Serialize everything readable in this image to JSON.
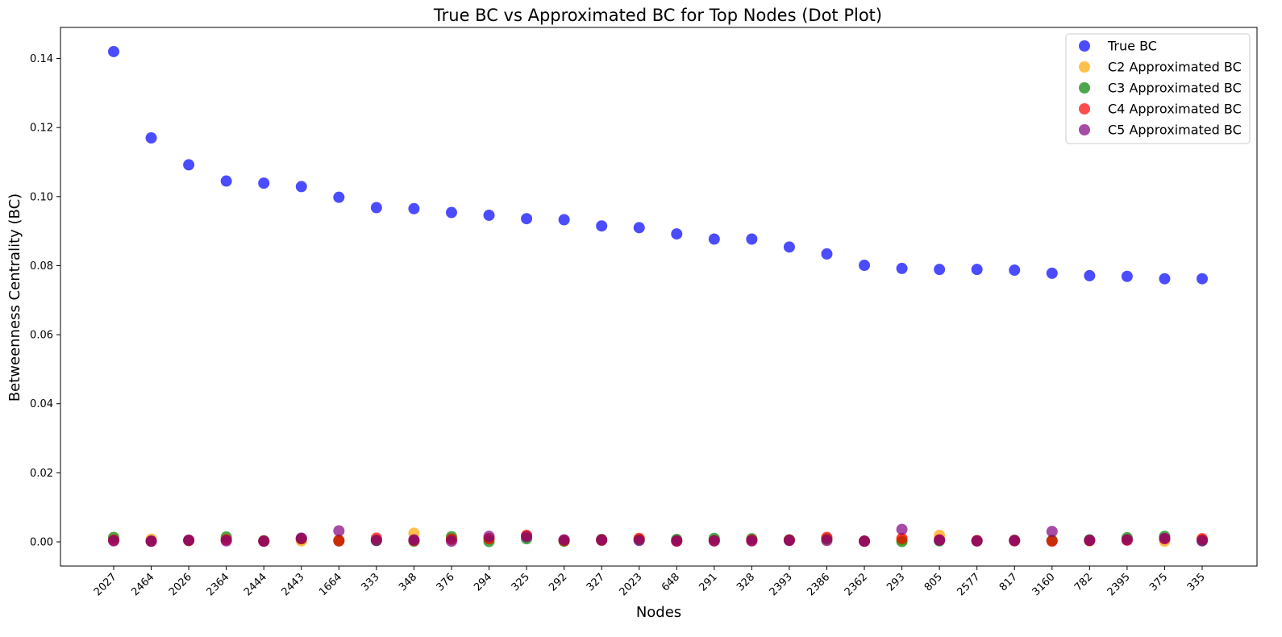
{
  "chart_data": {
    "type": "scatter",
    "title": "True BC vs Approximated BC for Top Nodes (Dot Plot)",
    "xlabel": "Nodes",
    "ylabel": "Betweenness Centrality (BC)",
    "ylim": [
      -0.007,
      0.149
    ],
    "yticks": [
      0.0,
      0.02,
      0.04,
      0.06,
      0.08,
      0.1,
      0.12,
      0.14
    ],
    "ytick_labels": [
      "0.00",
      "0.02",
      "0.04",
      "0.06",
      "0.08",
      "0.10",
      "0.12",
      "0.14"
    ],
    "categories": [
      "2027",
      "2464",
      "2026",
      "2364",
      "2444",
      "2443",
      "1664",
      "333",
      "348",
      "376",
      "294",
      "325",
      "292",
      "327",
      "2023",
      "648",
      "291",
      "328",
      "2393",
      "2386",
      "2362",
      "293",
      "805",
      "2577",
      "817",
      "3160",
      "782",
      "2395",
      "375",
      "335"
    ],
    "legend_position": "top-right",
    "grid": false,
    "series": [
      {
        "name": "True BC",
        "color": "#0000ff",
        "values": [
          0.142,
          0.117,
          0.1092,
          0.1045,
          0.1039,
          0.1029,
          0.0998,
          0.0968,
          0.0965,
          0.0954,
          0.0946,
          0.0936,
          0.0933,
          0.0915,
          0.091,
          0.0892,
          0.0877,
          0.0877,
          0.0854,
          0.0834,
          0.0801,
          0.0792,
          0.0789,
          0.0789,
          0.0787,
          0.0778,
          0.0771,
          0.0769,
          0.0762,
          0.0762
        ]
      },
      {
        "name": "C2 Approximated BC",
        "color": "#ffa500",
        "values": [
          0.0005,
          0.0008,
          0.0004,
          0.0006,
          0.0003,
          0.0003,
          0.0006,
          0.0005,
          0.0025,
          0.0006,
          0.0009,
          0.0017,
          0.0003,
          0.0004,
          0.0008,
          0.0003,
          0.0004,
          0.0003,
          0.0005,
          0.0006,
          0.0002,
          0.0006,
          0.0019,
          0.0004,
          0.0005,
          0.0004,
          0.0003,
          0.0006,
          0.0002,
          0.0007
        ]
      },
      {
        "name": "C3 Approximated BC",
        "color": "#008000",
        "values": [
          0.0013,
          0.0002,
          0.0004,
          0.0014,
          0.0003,
          0.0009,
          0.0003,
          0.0004,
          0.0002,
          0.0015,
          0.0001,
          0.0009,
          0.0002,
          0.0007,
          0.0006,
          0.0007,
          0.001,
          0.0009,
          0.0006,
          0.0009,
          0.0002,
          0.0001,
          0.0003,
          0.0003,
          0.0004,
          0.0004,
          0.0006,
          0.0012,
          0.0016,
          0.0004
        ]
      },
      {
        "name": "C4 Approximated BC",
        "color": "#ff0000",
        "values": [
          0.0005,
          0.0002,
          0.0004,
          0.0006,
          0.0002,
          0.0009,
          0.0003,
          0.0011,
          0.0004,
          0.0008,
          0.0009,
          0.0019,
          0.0004,
          0.0006,
          0.001,
          0.0002,
          0.0003,
          0.0005,
          0.0005,
          0.0013,
          0.0002,
          0.001,
          0.0006,
          0.0003,
          0.0003,
          0.0002,
          0.0004,
          0.0005,
          0.0009,
          0.0009
        ]
      },
      {
        "name": "C5 Approximated BC",
        "color": "#800080",
        "values": [
          0.0003,
          0.0002,
          0.0005,
          0.0003,
          0.0002,
          0.0011,
          0.0032,
          0.0004,
          0.0006,
          0.0002,
          0.0016,
          0.0015,
          0.0006,
          0.0005,
          0.0004,
          0.0003,
          0.0003,
          0.0003,
          0.0004,
          0.0004,
          0.0002,
          0.0036,
          0.0005,
          0.0003,
          0.0004,
          0.003,
          0.0004,
          0.0006,
          0.001,
          0.0003
        ]
      }
    ]
  }
}
